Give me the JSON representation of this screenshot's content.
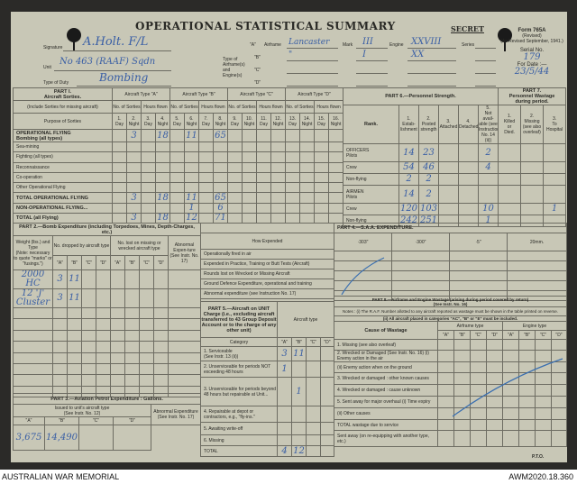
{
  "header": {
    "title": "OPERATIONAL STATISTICAL SUMMARY",
    "secret": "SECRET",
    "signature_label": "Signature",
    "signature": "A.Holt. F/L",
    "unit_label": "Unit",
    "unit": "No 463 (RAAF) Sqdn",
    "duty_label": "Type of Duty",
    "duty": "Bombing",
    "type_label": "Type of\nAirframe(s)\nand\nEngine(s)",
    "airframe_label": "Airframe",
    "mark_label": "Mark",
    "engine_label": "Engine",
    "series_label": "Series",
    "rows": [
      {
        "key": "\"A\"",
        "airframe": "Lancaster",
        "mark": "III",
        "engine": "XXVIII"
      },
      {
        "key": "\"B\"",
        "airframe": "\"",
        "mark": "I",
        "engine": "XX"
      },
      {
        "key": "\"C\"",
        "airframe": "",
        "mark": "",
        "engine": ""
      },
      {
        "key": "\"D\"",
        "airframe": "",
        "mark": "",
        "engine": ""
      }
    ],
    "form": "Form 765A",
    "revised": "(Revised)",
    "as_revised": "(As Revised September, 1941.)",
    "serial_label": "Serial No.",
    "serial": "179",
    "date_label": "For Date :—",
    "date": "23/5/44"
  },
  "part1": {
    "title": "PART I.\nAircraft Sorties.",
    "include": "(Include Sorties for missing aircraft)",
    "purpose": "Purpose of Sorties",
    "types": [
      "Aircraft Type \"A\"",
      "Aircraft Type \"B\"",
      "Aircraft Type \"C\"",
      "Aircraft Type \"D\""
    ],
    "sorties": "No. of Sorties",
    "hours": "Hours flown",
    "cols": [
      "1.\nDay",
      "2.\nNight",
      "3.\nDay",
      "4.\nNight",
      "5.\nDay",
      "6.\nNight",
      "7.\nDay",
      "8.\nNight",
      "9.\nDay",
      "10.\nNight",
      "11.\nDay",
      "12.\nNight",
      "13.\nDay",
      "14.\nNight",
      "15.\nDay",
      "16.\nNight"
    ],
    "rows": [
      {
        "label": "OPERATIONAL FLYING\nBombing (all types)",
        "v": [
          "",
          "3",
          "",
          "18",
          "",
          "11",
          "",
          "65",
          "",
          "",
          "",
          "",
          "",
          "",
          "",
          ""
        ]
      },
      {
        "label": "Sea-mining",
        "v": [
          "",
          "",
          "",
          "",
          "",
          "",
          "",
          "",
          "",
          "",
          "",
          "",
          "",
          "",
          "",
          ""
        ]
      },
      {
        "label": "Fighting (all types)",
        "v": [
          "",
          "",
          "",
          "",
          "",
          "",
          "",
          "",
          "",
          "",
          "",
          "",
          "",
          "",
          "",
          ""
        ]
      },
      {
        "label": "Reconnaissance",
        "v": [
          "",
          "",
          "",
          "",
          "",
          "",
          "",
          "",
          "",
          "",
          "",
          "",
          "",
          "",
          "",
          ""
        ]
      },
      {
        "label": "Co-operation",
        "v": [
          "",
          "",
          "",
          "",
          "",
          "",
          "",
          "",
          "",
          "",
          "",
          "",
          "",
          "",
          "",
          ""
        ]
      },
      {
        "label": "Other Operational Flying",
        "v": [
          "",
          "",
          "",
          "",
          "",
          "",
          "",
          "",
          "",
          "",
          "",
          "",
          "",
          "",
          "",
          ""
        ]
      },
      {
        "label": "TOTAL OPERATIONAL FLYING",
        "v": [
          "",
          "3",
          "",
          "18",
          "",
          "11",
          "",
          "65",
          "",
          "",
          "",
          "",
          "",
          "",
          "",
          ""
        ]
      },
      {
        "label": "NON-OPERATIONAL FLYING...",
        "v": [
          "",
          "",
          "",
          "",
          "",
          "1",
          "",
          "6",
          "",
          "",
          "",
          "",
          "",
          "",
          "",
          ""
        ]
      },
      {
        "label": "TOTAL (all Flying)",
        "v": [
          "",
          "3",
          "",
          "18",
          "",
          "12",
          "",
          "71",
          "",
          "",
          "",
          "",
          "",
          "",
          "",
          ""
        ]
      }
    ]
  },
  "part6": {
    "title": "PART 6.—Personnel Strength.",
    "p7title": "PART 7.\nPersonnel Wastage\nduring period.",
    "rank": "Rank.",
    "cols": [
      "1.\nEstab-\nlishment",
      "2.\nPosted\nstrength",
      "3.\nAttached",
      "4.\nDetached",
      "5.\nNot avail-\nable (see\nInstructions\nNo. 14 (ii))",
      "1.\nKilled\nor\nDied.",
      "2.\nMissing\n(see also\noverleaf)",
      "3.\nTo\nHospital"
    ],
    "rows": [
      {
        "label": "OFFICERS\nPilots",
        "v": [
          "14",
          "23",
          "",
          "",
          "2",
          "",
          "",
          ""
        ]
      },
      {
        "label": "Crew",
        "v": [
          "54",
          "46",
          "",
          "",
          "4",
          "",
          "",
          ""
        ]
      },
      {
        "label": "Non-flying",
        "v": [
          "2",
          "2",
          "",
          "",
          "",
          "",
          "",
          ""
        ]
      },
      {
        "label": "AIRMEN\nPilots",
        "v": [
          "14",
          "2",
          "",
          "",
          "",
          "",
          "",
          ""
        ]
      },
      {
        "label": "Crew",
        "v": [
          "120",
          "103",
          "",
          "",
          "10",
          "",
          "",
          "1"
        ]
      },
      {
        "label": "Non-flying",
        "v": [
          "242",
          "251",
          "",
          "",
          "1",
          "",
          "",
          ""
        ]
      }
    ]
  },
  "part2": {
    "title": "PART 2.—Bomb Expenditure (including Torpedoes, Mines, Depth-Charges, etc.)",
    "weight": "Weight (lbs.) and Type\n(Note: necessary to quote \"marks\" or \"fusings.\")",
    "dropped": "No. dropped by aircraft type",
    "lost": "No. lost on missing or wrecked aircraft type",
    "abnormal": "Abnormal Expen-ture (See Instr. No. 17)",
    "keys": [
      "\"A\"",
      "\"B\"",
      "\"C\"",
      "\"D\""
    ],
    "rows": [
      {
        "type": "2000 HC",
        "v": [
          "3",
          "11",
          "",
          "",
          "",
          "",
          "",
          "",
          ""
        ]
      },
      {
        "type": "12 'J' Cluster",
        "v": [
          "3",
          "11",
          "",
          "",
          "",
          "",
          "",
          "",
          ""
        ]
      }
    ]
  },
  "how": {
    "title": "How Expended",
    "rows": [
      "Operationally fired in air",
      "Expended in Practice, Training or Butt Tests (Aircraft)",
      "Rounds lost on Wrecked or Missing Aircraft",
      "Ground Defence Expenditure, operational and training",
      "Abnormal expenditure (see Instruction No. 17)"
    ]
  },
  "part4": {
    "title": "PART 4.—S.A.A. EXPENDITURE.",
    "cols": [
      "·303\"",
      "·300\"",
      "·5\"",
      "20mm."
    ]
  },
  "part5": {
    "title": "PART 5.—Aircraft on UNIT Charge (i.e., excluding aircraft transferred to 43 Group Deposit Account or to the charge of any other unit)",
    "aircraft_type": "Aircraft type",
    "category": "Category",
    "keys": [
      "\"A\"",
      "\"B\"",
      "\"C\"",
      "\"D\""
    ],
    "rows": [
      {
        "label": "1. Serviceable\n(See Instr. 13 (ii))",
        "v": [
          "3",
          "11",
          "",
          ""
        ]
      },
      {
        "label": "2. Unserviceable for periods NOT exceeding 48 hours",
        "v": [
          "1",
          "",
          "",
          ""
        ]
      },
      {
        "label": "3. Unserviceable for periods beyond 48 hours but repairable at Unit...",
        "v": [
          "",
          "1",
          "",
          ""
        ]
      },
      {
        "label": "4. Repairable at depot or contractors, e.g., \"fly-ins.\"",
        "v": [
          "",
          "",
          "",
          ""
        ]
      },
      {
        "label": "5. Awaiting write-off",
        "v": [
          "",
          "",
          "",
          ""
        ]
      },
      {
        "label": "6. Missing",
        "v": [
          "",
          "",
          "",
          ""
        ]
      },
      {
        "label": "TOTAL",
        "v": [
          "4",
          "12",
          "",
          ""
        ]
      }
    ]
  },
  "part8": {
    "title": "PART 8.—Airframe and Engine Wastage (arising during period covered by return)\n(See Instr. No. 16)",
    "note1": "Notes : (i) The R.A.F. Number allotted to any aircraft reported as wastage must be shown in the table printed on reverse.",
    "note2": "(ii) All aircraft placed in categories \"AC\", \"B\" or \"E\" must be included.",
    "cause": "Cause of Wastage",
    "airframe": "Airframe type",
    "engine": "Engine type",
    "keys": [
      "\"A\"",
      "\"B\"",
      "\"C\"",
      "\"D\"",
      "\"A\"",
      "\"B\"",
      "\"C\"",
      "\"D\""
    ],
    "rows": [
      "1. Missing (see also overleaf)",
      "2. Wrecked or Damaged (See Instr. No. 16) (i) Enemy action in the air",
      "(ii) Enemy action when on the ground",
      "3. Wrecked or damaged : other known causes",
      "4. Wrecked or damaged : cause unknown",
      "5. Sent away for major overhaul (i) Time expiry",
      "(ii) Other causes",
      "TOTAL wastage due to service",
      "Sent away (on re-equipping with another type, etc.)"
    ],
    "pto": "P.T.O."
  },
  "part3": {
    "title": "PART 3.—Aviation Petrol Expenditure : Gallons.",
    "issued": "Issued to unit's aircraft type\n(See Instr. No. 12)",
    "abnormal": "Abnormal Expenditure\n(See Instr. No. 17)",
    "keys": [
      "\"A\"",
      "\"B\"",
      "\"C\"",
      "\"D\""
    ],
    "v": [
      "3,675",
      "14,490",
      "",
      "",
      ""
    ]
  },
  "footer": {
    "left": "AUSTRALIAN WAR MEMORIAL",
    "right": "AWM2020.18.360"
  },
  "colors": {
    "ink": "#3a5fa5",
    "paper": "#c8c7b6",
    "background": "#2b2a28"
  }
}
